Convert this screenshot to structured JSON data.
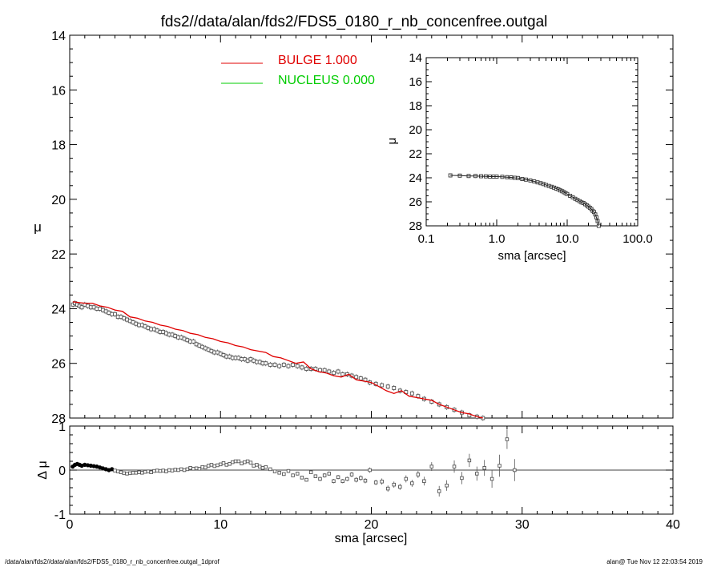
{
  "title": "fds2//data/alan/fds2/FDS5_0180_r_nb_concenfree.outgal",
  "footer": {
    "left": "/data/alan/fds2//data/alan/fds2/FDS5_0180_r_nb_concenfree.outgal_1dprof",
    "right": "alan@  Tue Nov 12 22:03:54 2019"
  },
  "colors": {
    "bulge": "#e00000",
    "nucleus": "#00cc00",
    "data": "#555555",
    "axes": "#000000"
  },
  "chart_data": [
    {
      "type": "scatter",
      "panel": "main profile",
      "xlabel": "",
      "ylabel": "μ",
      "xlim": [
        0,
        40
      ],
      "ylim": [
        28,
        14
      ],
      "y_inverted": true,
      "x_ticks": [
        "0",
        "10",
        "20",
        "30",
        "40"
      ],
      "y_ticks": [
        "14",
        "16",
        "18",
        "20",
        "22",
        "24",
        "26",
        "28"
      ],
      "legend": [
        {
          "label": "BULGE  1.000",
          "color": "#e00000"
        },
        {
          "label": "NUCLEUS  0.000",
          "color": "#00cc00"
        }
      ],
      "legend_position": "top-center",
      "series": [
        {
          "name": "data",
          "style": "open squares with error bars",
          "x": [
            0.22,
            0.35,
            0.5,
            0.65,
            0.8,
            1.0,
            1.2,
            1.4,
            1.6,
            1.8,
            2.0,
            2.2,
            2.4,
            2.6,
            2.8,
            3.0,
            3.2,
            3.4,
            3.6,
            3.8,
            4.0,
            4.2,
            4.4,
            4.6,
            4.8,
            5.0,
            5.2,
            5.4,
            5.6,
            5.8,
            6.0,
            6.2,
            6.4,
            6.6,
            6.8,
            7.0,
            7.2,
            7.4,
            7.6,
            7.8,
            8.0,
            8.2,
            8.4,
            8.6,
            8.8,
            9.0,
            9.2,
            9.4,
            9.6,
            9.8,
            10.0,
            10.2,
            10.4,
            10.6,
            10.8,
            11.0,
            11.2,
            11.4,
            11.6,
            11.8,
            12.0,
            12.2,
            12.4,
            12.6,
            12.8,
            13.0,
            13.3,
            13.6,
            13.9,
            14.2,
            14.5,
            14.8,
            15.1,
            15.4,
            15.7,
            16.0,
            16.3,
            16.6,
            16.9,
            17.2,
            17.5,
            17.8,
            18.1,
            18.4,
            18.7,
            19.0,
            19.3,
            19.6,
            19.9,
            20.3,
            20.7,
            21.1,
            21.5,
            21.9,
            22.3,
            22.7,
            23.1,
            23.5,
            24.0,
            24.5,
            25.0,
            25.5,
            26.0,
            26.5,
            27.0,
            27.4
          ],
          "y": [
            23.85,
            23.8,
            23.85,
            23.9,
            23.95,
            23.85,
            23.9,
            23.95,
            23.95,
            24.0,
            24.0,
            24.05,
            24.1,
            24.15,
            24.2,
            24.2,
            24.3,
            24.3,
            24.35,
            24.4,
            24.45,
            24.5,
            24.55,
            24.6,
            24.6,
            24.65,
            24.7,
            24.75,
            24.75,
            24.8,
            24.85,
            24.85,
            24.9,
            24.95,
            24.95,
            25.0,
            25.05,
            25.05,
            25.1,
            25.15,
            25.2,
            25.2,
            25.3,
            25.35,
            25.4,
            25.45,
            25.5,
            25.55,
            25.6,
            25.6,
            25.65,
            25.7,
            25.75,
            25.75,
            25.8,
            25.8,
            25.8,
            25.85,
            25.85,
            25.9,
            25.85,
            25.9,
            25.95,
            25.95,
            26.0,
            26.0,
            26.05,
            26.05,
            26.1,
            26.05,
            26.1,
            26.05,
            26.1,
            26.15,
            26.2,
            26.2,
            26.2,
            26.25,
            26.25,
            26.3,
            26.35,
            26.3,
            26.4,
            26.4,
            26.45,
            26.5,
            26.55,
            26.6,
            26.7,
            26.75,
            26.8,
            26.85,
            26.9,
            27.0,
            27.05,
            27.1,
            27.2,
            27.3,
            27.4,
            27.5,
            27.6,
            27.7,
            27.8,
            27.9,
            27.95,
            28.0
          ]
        },
        {
          "name": "BULGE  1.000",
          "style": "line",
          "x": [
            0.2,
            1.0,
            1.5,
            2.0,
            2.5,
            3.0,
            3.5,
            4.0,
            4.5,
            5.0,
            5.5,
            6.0,
            6.5,
            7.0,
            7.5,
            8.0,
            8.5,
            9.0,
            9.5,
            10.0,
            10.5,
            11.0,
            11.5,
            12.0,
            12.5,
            13.0,
            13.5,
            14.0,
            14.5,
            15.0,
            15.5,
            16.0,
            16.5,
            17.0,
            17.5,
            18.0,
            18.5,
            19.0,
            19.5,
            20.0,
            20.5,
            21.0,
            21.5,
            22.0,
            22.5,
            23.0,
            23.5,
            24.0,
            24.5,
            25.0,
            25.5,
            26.0,
            26.5,
            27.0,
            27.4
          ],
          "y": [
            23.75,
            23.8,
            23.8,
            23.9,
            23.95,
            24.05,
            24.1,
            24.3,
            24.35,
            24.45,
            24.5,
            24.6,
            24.65,
            24.75,
            24.8,
            24.9,
            24.95,
            25.05,
            25.1,
            25.2,
            25.25,
            25.35,
            25.4,
            25.5,
            25.55,
            25.6,
            25.75,
            25.8,
            25.9,
            26.0,
            25.95,
            26.2,
            26.3,
            26.35,
            26.45,
            26.5,
            26.4,
            26.6,
            26.65,
            26.7,
            26.85,
            27.0,
            27.1,
            27.0,
            27.2,
            27.25,
            27.3,
            27.35,
            27.5,
            27.6,
            27.7,
            27.8,
            27.85,
            27.95,
            28.0
          ]
        },
        {
          "name": "NUCLEUS  0.000",
          "style": "line",
          "x": [],
          "y": []
        }
      ]
    },
    {
      "type": "scatter",
      "panel": "residuals",
      "xlabel": "sma [arcsec]",
      "ylabel": "Δ μ",
      "xlim": [
        0,
        40
      ],
      "ylim": [
        -1,
        1
      ],
      "x_ticks": [
        "0",
        "10",
        "20",
        "30",
        "40"
      ],
      "y_ticks": [
        "-1",
        "0",
        "1"
      ],
      "reference_line": 0,
      "series": [
        {
          "name": "residuals",
          "x": [
            0.2,
            0.35,
            0.5,
            0.65,
            0.8,
            1.0,
            1.2,
            1.4,
            1.6,
            1.8,
            2.0,
            2.2,
            2.4,
            2.6,
            2.8,
            3.0,
            3.2,
            3.4,
            3.6,
            3.8,
            4.0,
            4.2,
            4.4,
            4.6,
            4.8,
            5.0,
            5.2,
            5.4,
            5.6,
            5.8,
            6.0,
            6.2,
            6.4,
            6.6,
            6.8,
            7.0,
            7.2,
            7.4,
            7.6,
            7.8,
            8.0,
            8.2,
            8.4,
            8.6,
            8.8,
            9.0,
            9.2,
            9.4,
            9.6,
            9.8,
            10.0,
            10.2,
            10.4,
            10.6,
            10.8,
            11.0,
            11.2,
            11.4,
            11.6,
            11.8,
            12.0,
            12.2,
            12.4,
            12.6,
            12.8,
            13.0,
            13.3,
            13.6,
            13.9,
            14.2,
            14.5,
            14.8,
            15.1,
            15.4,
            15.7,
            16.0,
            16.3,
            16.6,
            16.9,
            17.2,
            17.5,
            17.8,
            18.1,
            18.4,
            18.7,
            19.0,
            19.3,
            19.6,
            19.9,
            20.3,
            20.7,
            21.1,
            21.5,
            21.9,
            22.3,
            22.7,
            23.1,
            23.5,
            24.0,
            24.5,
            25.0,
            25.5,
            26.0,
            26.5,
            27.0,
            27.5,
            28.0,
            28.5,
            29.0,
            29.5
          ],
          "y": [
            0.08,
            0.12,
            0.14,
            0.12,
            0.1,
            0.12,
            0.11,
            0.1,
            0.09,
            0.08,
            0.06,
            0.04,
            0.02,
            0.0,
            0.02,
            -0.01,
            -0.03,
            -0.05,
            -0.07,
            -0.08,
            -0.07,
            -0.06,
            -0.06,
            -0.05,
            -0.06,
            -0.04,
            -0.03,
            -0.05,
            -0.02,
            -0.01,
            -0.02,
            -0.01,
            -0.03,
            0.0,
            -0.01,
            0.01,
            0.0,
            0.02,
            0.0,
            0.02,
            0.05,
            0.03,
            0.04,
            0.03,
            0.07,
            0.06,
            0.1,
            0.12,
            0.09,
            0.11,
            0.13,
            0.16,
            0.12,
            0.14,
            0.18,
            0.2,
            0.2,
            0.15,
            0.18,
            0.2,
            0.17,
            0.1,
            0.12,
            0.08,
            0.05,
            0.07,
            0.02,
            -0.03,
            -0.06,
            -0.09,
            -0.02,
            -0.12,
            -0.08,
            -0.17,
            -0.22,
            -0.05,
            -0.14,
            -0.2,
            -0.12,
            -0.08,
            -0.25,
            -0.16,
            -0.25,
            -0.2,
            -0.1,
            -0.22,
            -0.18,
            -0.24,
            0.0,
            -0.28,
            -0.26,
            -0.42,
            -0.33,
            -0.38,
            -0.2,
            -0.3,
            -0.1,
            -0.25,
            0.08,
            -0.48,
            -0.35,
            0.08,
            -0.18,
            0.22,
            -0.08,
            0.05,
            -0.2,
            0.1,
            0.7,
            0.0
          ],
          "err": [
            0.02,
            0.02,
            0.02,
            0.02,
            0.02,
            0.02,
            0.02,
            0.02,
            0.02,
            0.02,
            0.02,
            0.02,
            0.02,
            0.02,
            0.02,
            0.02,
            0.02,
            0.02,
            0.02,
            0.02,
            0.02,
            0.02,
            0.02,
            0.02,
            0.02,
            0.02,
            0.02,
            0.02,
            0.02,
            0.02,
            0.02,
            0.02,
            0.02,
            0.02,
            0.02,
            0.02,
            0.02,
            0.02,
            0.02,
            0.02,
            0.02,
            0.02,
            0.02,
            0.02,
            0.02,
            0.02,
            0.02,
            0.02,
            0.02,
            0.02,
            0.02,
            0.02,
            0.02,
            0.02,
            0.02,
            0.02,
            0.02,
            0.02,
            0.02,
            0.02,
            0.03,
            0.03,
            0.03,
            0.03,
            0.03,
            0.03,
            0.03,
            0.03,
            0.03,
            0.03,
            0.04,
            0.04,
            0.04,
            0.04,
            0.04,
            0.04,
            0.04,
            0.05,
            0.05,
            0.05,
            0.05,
            0.05,
            0.05,
            0.05,
            0.06,
            0.06,
            0.06,
            0.06,
            0.06,
            0.06,
            0.07,
            0.07,
            0.07,
            0.07,
            0.08,
            0.08,
            0.08,
            0.1,
            0.1,
            0.12,
            0.12,
            0.14,
            0.14,
            0.15,
            0.16,
            0.18,
            0.2,
            0.25,
            0.22,
            0.25
          ]
        }
      ]
    },
    {
      "type": "scatter",
      "panel": "inset log profile",
      "xlabel": "sma [arcsec]",
      "ylabel": "μ",
      "xscale": "log",
      "xlim": [
        0.1,
        100.0
      ],
      "ylim": [
        28,
        14
      ],
      "y_inverted": true,
      "x_ticks": [
        "0.1",
        "1.0",
        "10.0",
        "100.0"
      ],
      "y_ticks": [
        "14",
        "16",
        "18",
        "20",
        "22",
        "24",
        "26",
        "28"
      ],
      "series": [
        {
          "name": "data",
          "x": [
            0.22,
            0.3,
            0.4,
            0.5,
            0.6,
            0.7,
            0.8,
            0.9,
            1.0,
            1.2,
            1.4,
            1.6,
            1.8,
            2.0,
            2.3,
            2.6,
            3.0,
            3.4,
            3.8,
            4.2,
            4.6,
            5.0,
            5.5,
            6.0,
            6.5,
            7.0,
            7.5,
            8.0,
            8.5,
            9.0,
            9.5,
            10.0,
            11.0,
            12.0,
            13.0,
            14.0,
            15.0,
            16.0,
            17.0,
            18.0,
            19.0,
            20.0,
            21.0,
            22.0,
            23.0,
            24.0,
            25.0,
            26.0,
            27.0,
            28.0
          ],
          "y": [
            23.8,
            23.82,
            23.85,
            23.85,
            23.87,
            23.88,
            23.9,
            23.9,
            23.9,
            23.92,
            23.95,
            23.97,
            24.0,
            24.02,
            24.1,
            24.15,
            24.22,
            24.3,
            24.38,
            24.45,
            24.52,
            24.6,
            24.68,
            24.75,
            24.82,
            24.9,
            24.97,
            25.05,
            25.12,
            25.2,
            25.28,
            25.35,
            25.5,
            25.62,
            25.75,
            25.85,
            25.95,
            26.05,
            26.1,
            26.2,
            26.3,
            26.4,
            26.5,
            26.6,
            26.75,
            26.85,
            27.05,
            27.3,
            27.6,
            28.0
          ]
        }
      ]
    }
  ]
}
